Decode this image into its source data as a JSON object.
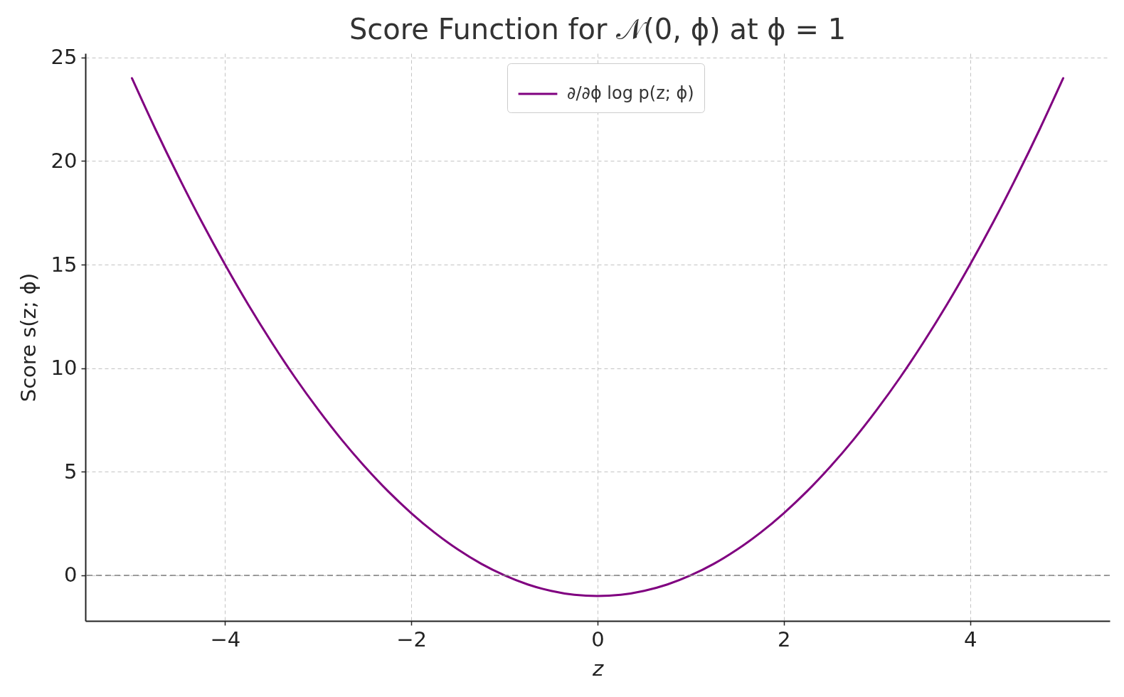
{
  "chart_data": {
    "type": "line",
    "title": "Score Function for 𝒩(0, ϕ) at ϕ = 1",
    "xlabel": "z",
    "ylabel": "Score s(z; ϕ)",
    "x": [
      -5,
      -4.75,
      -4.5,
      -4.25,
      -4,
      -3.75,
      -3.5,
      -3.25,
      -3,
      -2.75,
      -2.5,
      -2.25,
      -2,
      -1.75,
      -1.5,
      -1.25,
      -1,
      -0.75,
      -0.5,
      -0.25,
      0,
      0.25,
      0.5,
      0.75,
      1,
      1.25,
      1.5,
      1.75,
      2,
      2.25,
      2.5,
      2.75,
      3,
      3.25,
      3.5,
      3.75,
      4,
      4.25,
      4.5,
      4.75,
      5
    ],
    "series": [
      {
        "name": "∂/∂ϕ log p(z; ϕ)",
        "color": "#800080",
        "values": [
          24,
          21.56,
          19.25,
          17.06,
          15,
          13.06,
          11.25,
          9.56,
          8,
          6.56,
          5.25,
          4.06,
          3,
          2.06,
          1.25,
          0.56,
          0,
          -0.44,
          -0.75,
          -0.94,
          -1,
          -0.94,
          -0.75,
          -0.44,
          0,
          0.56,
          1.25,
          2.06,
          3,
          4.06,
          5.25,
          6.56,
          8,
          9.56,
          11.25,
          13.06,
          15,
          17.06,
          19.25,
          21.56,
          24
        ]
      }
    ],
    "xlim": [
      -5.5,
      5.5
    ],
    "ylim": [
      -2.2,
      25.2
    ],
    "xticks": [
      -4,
      -2,
      0,
      2,
      4
    ],
    "yticks": [
      0,
      5,
      10,
      15,
      20,
      25
    ],
    "ref_lines": [
      {
        "axis": "y",
        "value": 0,
        "color": "#808080",
        "line_style": "dashed"
      }
    ],
    "grid": true,
    "legend": "top"
  }
}
